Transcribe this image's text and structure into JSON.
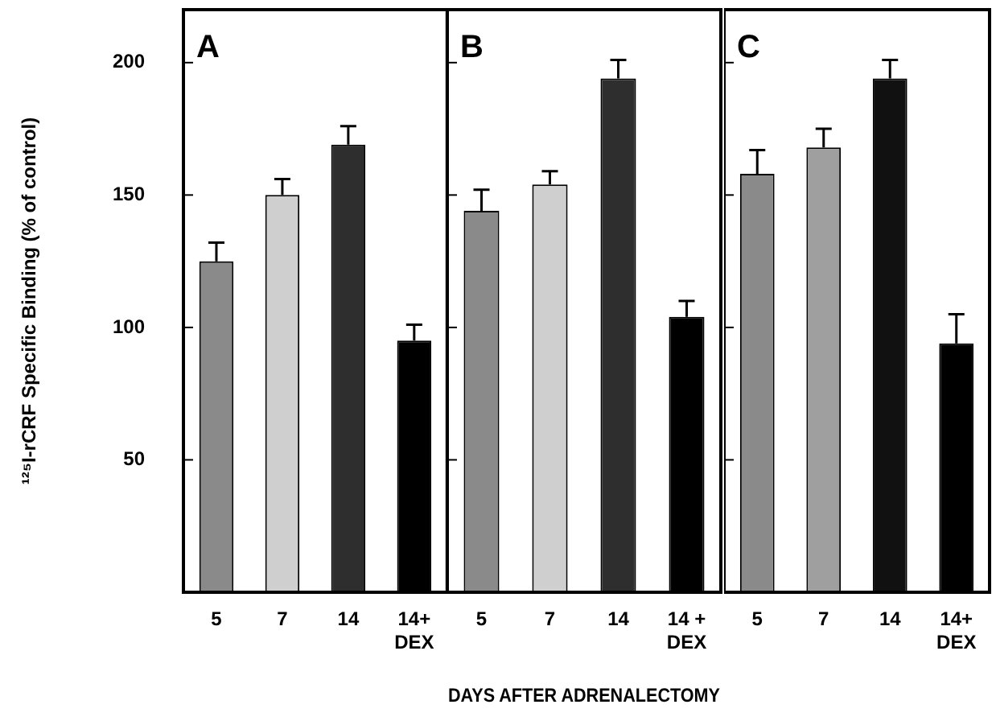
{
  "chart_data": [
    {
      "type": "bar",
      "title": "A",
      "ylabel": "¹²⁵I-rCRF Specific Binding (% of control)",
      "categories": [
        "5",
        "7",
        "14",
        "14+ DEX"
      ],
      "values": [
        125,
        150,
        169,
        95
      ],
      "colors": [
        "#8a8a8a",
        "#cfcfcf",
        "#2e2e2e",
        "#000000"
      ],
      "errors": [
        [
          125,
          132
        ],
        [
          150,
          156
        ],
        [
          169,
          176
        ],
        [
          95,
          101
        ]
      ],
      "ylim": [
        0,
        220
      ],
      "yticks": [
        50,
        100,
        150,
        200
      ]
    },
    {
      "type": "bar",
      "title": "B",
      "xlabel": "DAYS AFTER ADRENALECTOMY",
      "categories": [
        "5",
        "7",
        "14",
        "14 + DEX"
      ],
      "values": [
        144,
        154,
        194,
        104
      ],
      "colors": [
        "#8a8a8a",
        "#cfcfcf",
        "#2e2e2e",
        "#000000"
      ],
      "errors": [
        [
          144,
          152
        ],
        [
          154,
          159
        ],
        [
          194,
          201
        ],
        [
          104,
          110
        ]
      ],
      "ylim": [
        0,
        220
      ],
      "yticks": [
        50,
        100,
        150,
        200
      ],
      "tick_labels": "x"
    },
    {
      "type": "bar",
      "title": "C",
      "categories": [
        "5",
        "7",
        "14",
        "14+ DEX"
      ],
      "values": [
        158,
        168,
        194,
        94
      ],
      "colors": [
        "#8a8a8a",
        "#9f9f9f",
        "#111111",
        "#000000"
      ],
      "errors": [
        [
          158,
          167
        ],
        [
          168,
          175
        ],
        [
          194,
          201
        ],
        [
          94,
          105
        ]
      ],
      "ylim": [
        0,
        220
      ],
      "yticks": [
        50,
        100,
        150,
        200
      ],
      "tick_labels": "x"
    }
  ]
}
